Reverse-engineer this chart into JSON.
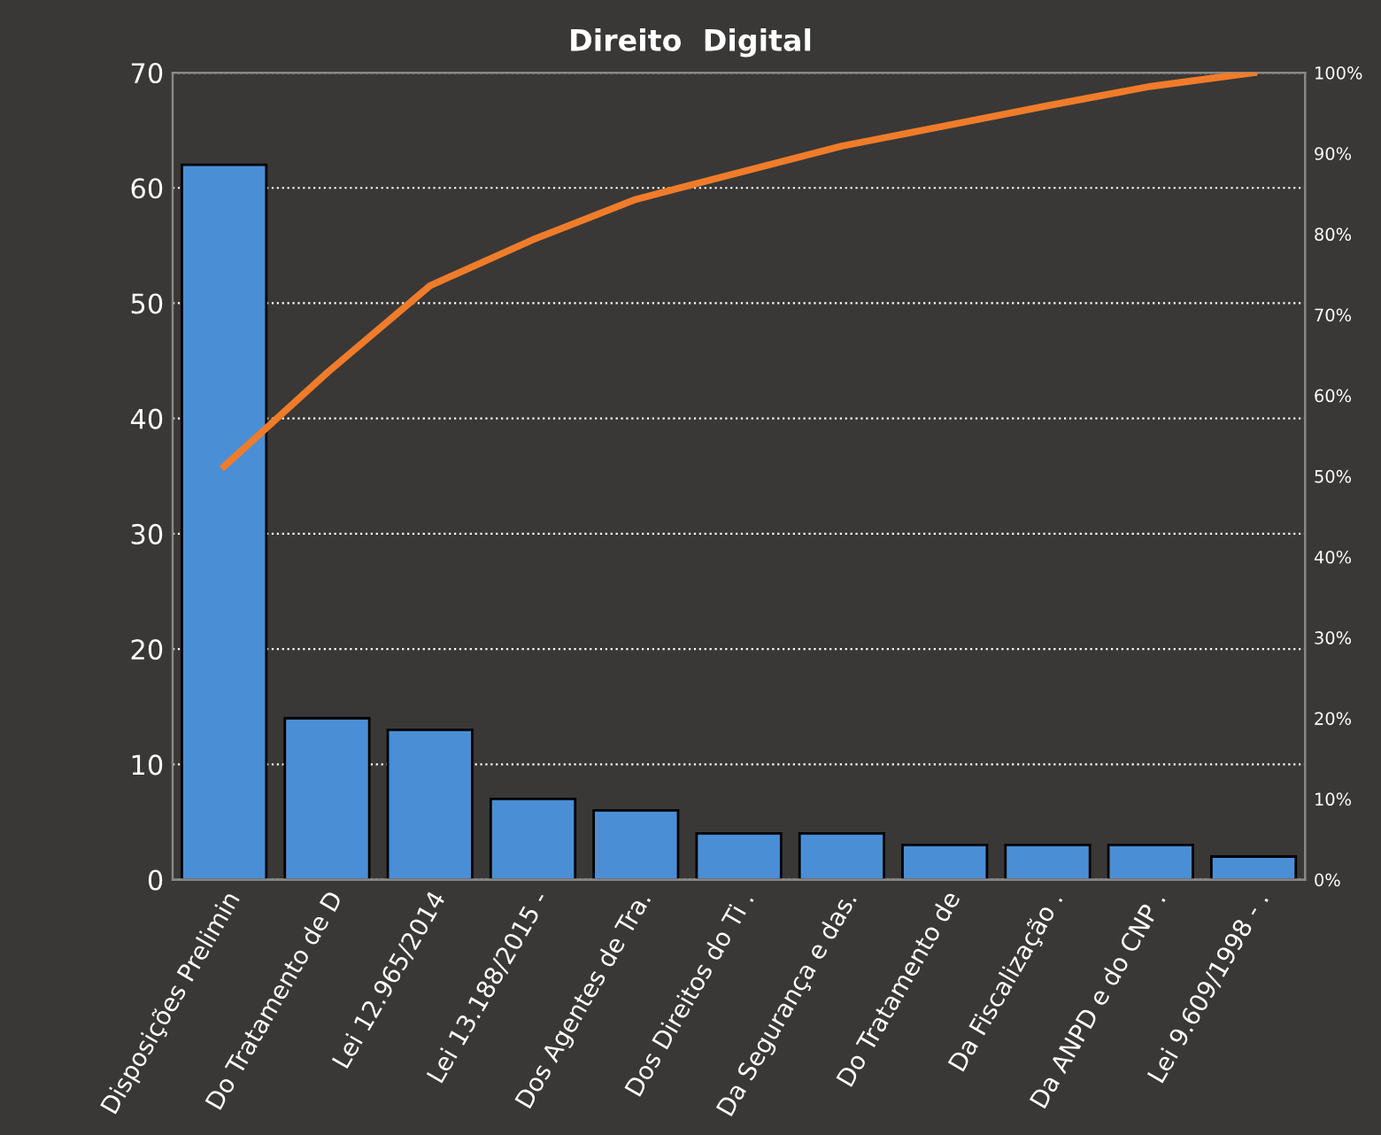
{
  "chart_data": {
    "type": "bar",
    "title": "Direito  Digital",
    "categories": [
      "Disposições Prelimin",
      "Do Tratamento de D",
      "Lei 12.965/2014",
      "Lei 13.188/2015 -",
      "Dos Agentes de Tra.",
      "Dos Direitos do Ti .",
      "Da Segurança e das.",
      "Do Tratamento de",
      "Da Fiscalização .",
      "Da ANPD e do CNP .",
      "Lei 9.609/1998 - ."
    ],
    "series": [
      {
        "color": "#4a8fd6",
        "values": [
          62,
          14,
          13,
          7,
          6,
          4,
          4,
          3,
          3,
          3,
          2
        ]
      },
      {
        "type": "line",
        "axis": "y2",
        "color": "#f07c2a",
        "values": [
          51.2,
          62.8,
          73.6,
          79.3,
          84.3,
          87.6,
          90.9,
          93.4,
          95.9,
          98.3,
          100
        ]
      }
    ],
    "ylim": [
      0,
      70
    ],
    "yticks": [
      0,
      10,
      20,
      30,
      40,
      50,
      60,
      70
    ],
    "y2lim": [
      0,
      100
    ],
    "y2ticks": [
      {
        "value": 0,
        "label": "0%"
      },
      {
        "value": 10,
        "label": "10%"
      },
      {
        "value": 20,
        "label": "20%"
      },
      {
        "value": 30,
        "label": "30%"
      },
      {
        "value": 40,
        "label": "40%"
      },
      {
        "value": 50,
        "label": "50%"
      },
      {
        "value": 60,
        "label": "60%"
      },
      {
        "value": 70,
        "label": "70%"
      },
      {
        "value": 80,
        "label": "80%"
      },
      {
        "value": 90,
        "label": "90%"
      },
      {
        "value": 100,
        "label": "100%"
      }
    ],
    "grid": "y",
    "line_style": "solid",
    "marker": "none"
  }
}
